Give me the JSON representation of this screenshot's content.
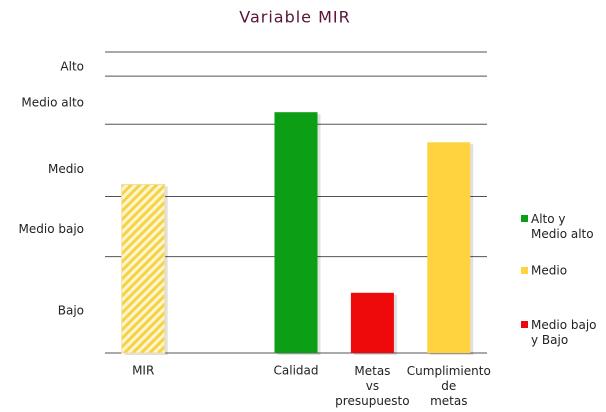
{
  "chart_data": {
    "type": "bar",
    "title": "Variable MIR",
    "categories": [
      "MIR",
      null,
      "Calidad",
      "Metas\nvs\npresupuesto",
      "Cumplimiento\nde\nmetas"
    ],
    "values": [
      56,
      null,
      80,
      20,
      70
    ],
    "colors": [
      "#f5d24a",
      null,
      "#0c9e14",
      "#ee0a0a",
      "#ffd23f"
    ],
    "hatch": [
      true,
      null,
      false,
      false,
      false
    ],
    "ylim": [
      0,
      100
    ],
    "yticks": [
      {
        "value": 14,
        "label": "Bajo"
      },
      {
        "value": 41,
        "label": "Medio bajo"
      },
      {
        "value": 61,
        "label": "Medio"
      },
      {
        "value": 83,
        "label": "Medio alto"
      },
      {
        "value": 95,
        "label": "Alto"
      }
    ],
    "bands": [
      0,
      32,
      52,
      76,
      92,
      100
    ],
    "legend": [
      {
        "label": "Alto y\nMedio alto",
        "color": "#0c9e14"
      },
      {
        "label": "Medio",
        "color": "#ffd23f"
      },
      {
        "label": "Medio bajo\ny Bajo",
        "color": "#ee0a0a"
      }
    ]
  }
}
